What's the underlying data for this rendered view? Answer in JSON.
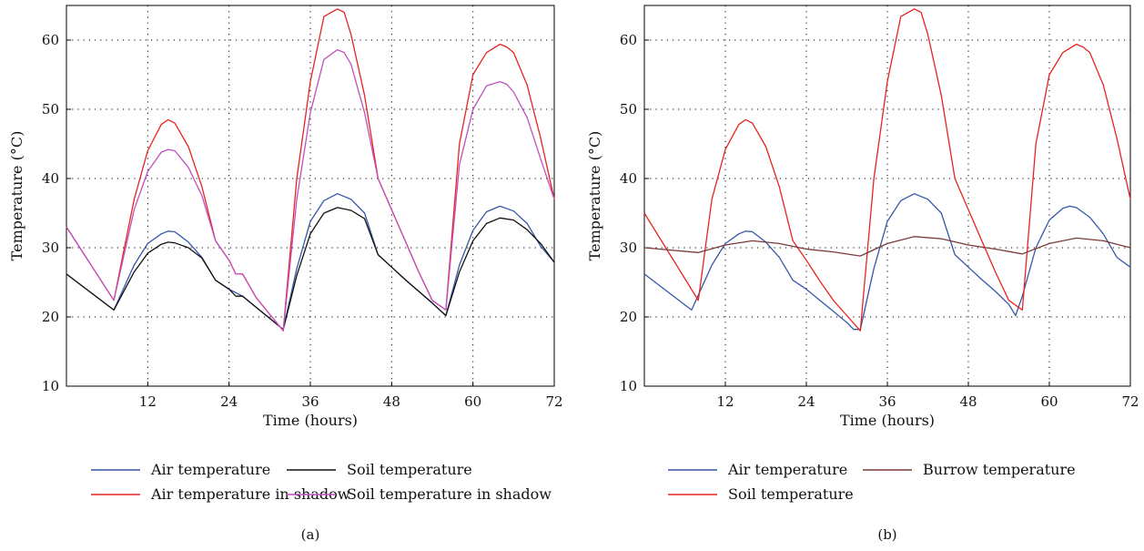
{
  "chart_data": [
    {
      "type": "line",
      "panel_label": "(a)",
      "xlabel": "Time (hours)",
      "ylabel": "Temperature (°C)",
      "xlim": [
        0,
        72
      ],
      "ylim": [
        10,
        65
      ],
      "xticks": [
        12,
        24,
        36,
        48,
        60,
        72
      ],
      "yticks": [
        10,
        20,
        30,
        40,
        50,
        60
      ],
      "grid": "dotted",
      "legend_position": "bottom",
      "series": [
        {
          "name": "Air temperature",
          "color": "#3557a8",
          "x": [
            0,
            7,
            10,
            12,
            14,
            15,
            16,
            18,
            20,
            22,
            24,
            26,
            28,
            30,
            32,
            34,
            36,
            38,
            40,
            42,
            44,
            46,
            48,
            50,
            52,
            54,
            56,
            58,
            60,
            62,
            64,
            66,
            68,
            70,
            72
          ],
          "y": [
            26.2,
            21.0,
            27.5,
            30.6,
            32.0,
            32.4,
            32.3,
            30.8,
            28.6,
            25.3,
            24.0,
            23.0,
            21.4,
            19.8,
            18.2,
            27.0,
            33.8,
            36.8,
            37.8,
            37.0,
            35.0,
            29.0,
            27.2,
            25.4,
            23.7,
            22.0,
            20.2,
            27.5,
            32.5,
            35.2,
            36.0,
            35.3,
            33.5,
            30.2,
            27.9
          ]
        },
        {
          "name": "Soil temperature",
          "color": "#111111",
          "x": [
            0,
            7,
            10,
            12,
            14,
            15,
            16,
            18,
            20,
            22,
            24,
            25,
            26,
            28,
            30,
            32,
            34,
            36,
            38,
            40,
            42,
            44,
            46,
            48,
            50,
            52,
            54,
            56,
            58,
            60,
            62,
            64,
            66,
            68,
            70,
            72
          ],
          "y": [
            26.2,
            21.0,
            26.5,
            29.2,
            30.5,
            30.8,
            30.7,
            30.0,
            28.5,
            25.3,
            24.0,
            23.0,
            23.0,
            21.4,
            19.8,
            18.2,
            26.0,
            32.0,
            35.0,
            35.8,
            35.4,
            34.2,
            29.0,
            27.2,
            25.4,
            23.7,
            22.0,
            20.2,
            26.5,
            31.0,
            33.5,
            34.3,
            34.0,
            32.6,
            30.6,
            27.9
          ]
        },
        {
          "name": "Air temperature in shadow",
          "color": "#e52421",
          "x": [
            0,
            7,
            10,
            12,
            14,
            15,
            16,
            18,
            20,
            22,
            24,
            25,
            26,
            28,
            30,
            32,
            34,
            36,
            38,
            40,
            41,
            42,
            44,
            46,
            48,
            50,
            52,
            54,
            56,
            58,
            60,
            62,
            64,
            65,
            66,
            68,
            70,
            72
          ],
          "y": [
            33.0,
            22.4,
            37.0,
            44.0,
            47.8,
            48.5,
            48.0,
            44.6,
            38.8,
            31.0,
            28.2,
            26.2,
            26.2,
            22.8,
            20.4,
            18.0,
            40.0,
            54.0,
            63.4,
            64.5,
            64.0,
            60.8,
            52.0,
            40.0,
            35.5,
            31.0,
            26.5,
            22.4,
            21.0,
            45.0,
            55.0,
            58.2,
            59.4,
            59.0,
            58.2,
            53.5,
            45.8,
            37.0
          ]
        },
        {
          "name": "Soil temperature in shadow",
          "color": "#c04fbf",
          "x": [
            0,
            7,
            10,
            12,
            14,
            15,
            16,
            18,
            20,
            22,
            24,
            25,
            26,
            28,
            30,
            32,
            34,
            36,
            38,
            40,
            41,
            42,
            44,
            46,
            48,
            50,
            52,
            54,
            56,
            58,
            60,
            62,
            64,
            65,
            66,
            68,
            70,
            72
          ],
          "y": [
            33.0,
            22.4,
            35.5,
            41.0,
            43.8,
            44.2,
            44.0,
            41.6,
            37.5,
            31.0,
            28.2,
            26.2,
            26.2,
            22.8,
            20.4,
            18.0,
            37.0,
            49.5,
            57.2,
            58.6,
            58.2,
            56.5,
            49.5,
            40.0,
            35.5,
            31.0,
            26.5,
            22.4,
            21.0,
            42.0,
            50.0,
            53.4,
            54.0,
            53.6,
            52.5,
            48.8,
            42.8,
            37.0
          ]
        }
      ]
    },
    {
      "type": "line",
      "panel_label": "(b)",
      "xlabel": "Time (hours)",
      "ylabel": "Temperature (°C)",
      "xlim": [
        0,
        72
      ],
      "ylim": [
        10,
        65
      ],
      "xticks": [
        12,
        24,
        36,
        48,
        60,
        72
      ],
      "yticks": [
        10,
        20,
        30,
        40,
        50,
        60
      ],
      "grid": "dotted",
      "legend_position": "bottom",
      "series": [
        {
          "name": "Air temperature",
          "color": "#3557a8",
          "x": [
            0,
            7,
            10,
            12,
            14,
            15,
            16,
            18,
            20,
            22,
            24,
            26,
            28,
            30,
            31,
            32,
            34,
            36,
            38,
            40,
            42,
            44,
            46,
            48,
            50,
            52,
            54,
            55,
            56,
            58,
            60,
            62,
            63,
            64,
            66,
            68,
            70,
            72
          ],
          "y": [
            26.2,
            21.0,
            27.5,
            30.6,
            32.0,
            32.4,
            32.3,
            30.8,
            28.6,
            25.3,
            24.0,
            22.4,
            20.8,
            19.2,
            18.2,
            18.2,
            27.0,
            33.8,
            36.8,
            37.8,
            37.0,
            35.0,
            29.0,
            27.2,
            25.4,
            23.7,
            21.8,
            20.2,
            23.0,
            30.0,
            34.0,
            35.7,
            36.0,
            35.8,
            34.4,
            32.0,
            28.6,
            27.2
          ]
        },
        {
          "name": "Soil temperature",
          "color": "#e52421",
          "x": [
            0,
            8,
            10,
            12,
            14,
            15,
            16,
            18,
            20,
            22,
            24,
            26,
            28,
            30,
            32,
            34,
            36,
            38,
            40,
            41,
            42,
            44,
            46,
            48,
            50,
            52,
            54,
            56,
            58,
            60,
            62,
            64,
            65,
            66,
            68,
            70,
            72
          ],
          "y": [
            35.0,
            22.4,
            37.0,
            44.2,
            47.8,
            48.5,
            48.0,
            44.6,
            38.8,
            31.0,
            28.2,
            25.2,
            22.4,
            20.2,
            18.0,
            40.0,
            54.0,
            63.4,
            64.5,
            64.0,
            60.8,
            52.0,
            40.0,
            35.5,
            31.0,
            26.5,
            22.4,
            21.0,
            45.0,
            55.0,
            58.2,
            59.4,
            59.0,
            58.2,
            53.5,
            45.8,
            37.0
          ]
        },
        {
          "name": "Burrow temperature",
          "color": "#7a3a3a",
          "x": [
            0,
            8,
            12,
            16,
            20,
            24,
            28,
            32,
            36,
            40,
            44,
            48,
            52,
            56,
            60,
            64,
            68,
            72
          ],
          "y": [
            30.0,
            29.3,
            30.4,
            31.0,
            30.6,
            29.8,
            29.4,
            28.8,
            30.6,
            31.6,
            31.3,
            30.4,
            29.8,
            29.1,
            30.6,
            31.4,
            31.0,
            30.0
          ]
        }
      ]
    }
  ]
}
